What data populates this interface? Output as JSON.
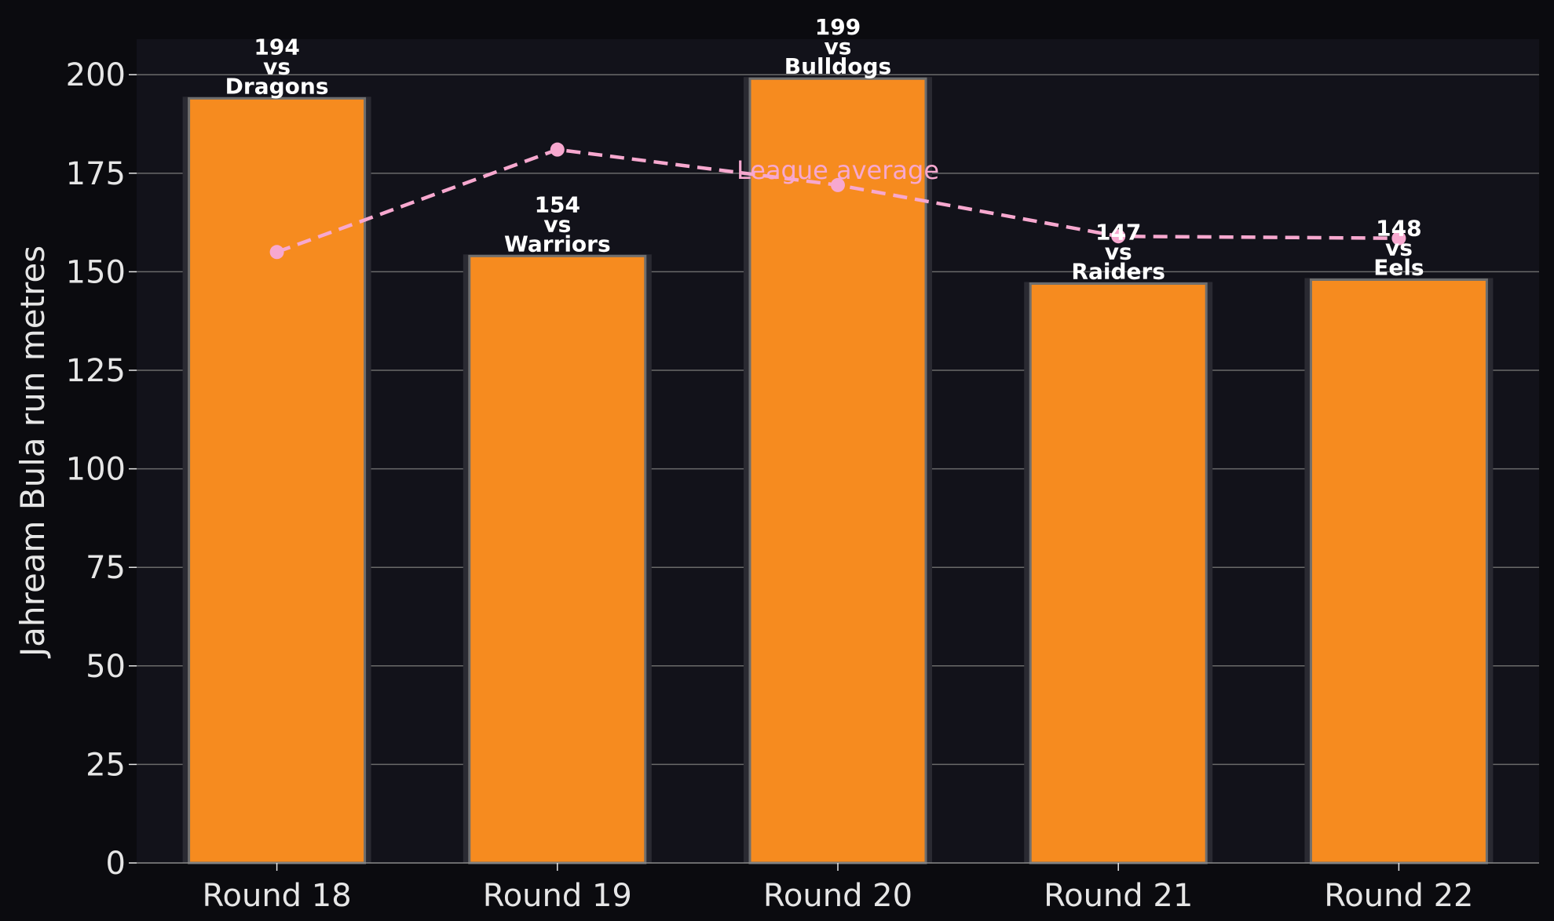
{
  "chart_data": {
    "type": "bar",
    "categories": [
      "Round 18",
      "Round 19",
      "Round 20",
      "Round 21",
      "Round 22"
    ],
    "series": [
      {
        "values": [
          194,
          154,
          199,
          147,
          148
        ]
      },
      {
        "name": "League average",
        "type": "line",
        "values": [
          155,
          181,
          172,
          159,
          158.5
        ]
      }
    ],
    "bar_labels": [
      [
        "194",
        "vs",
        "Dragons"
      ],
      [
        "154",
        "vs",
        "Warriors"
      ],
      [
        "199",
        "vs",
        "Bulldogs"
      ],
      [
        "147",
        "vs",
        "Raiders"
      ],
      [
        "148",
        "vs",
        "Eels"
      ]
    ],
    "title": "",
    "xlabel": "",
    "ylabel": "Jahream Bula run metres",
    "ylim": [
      0,
      209
    ],
    "yticks": [
      0,
      25,
      50,
      75,
      100,
      125,
      150,
      175,
      200
    ],
    "grid": true,
    "colors": {
      "bar": "#f68b1f",
      "bar_edge": "#6e6e6e",
      "average_line": "#f7a8cf",
      "plot_background": "#12121a",
      "figure_background": "#0b0b0f",
      "grid": "#6a6a6a",
      "text": "#e6e6e6",
      "label_text": "#ffffff"
    }
  }
}
